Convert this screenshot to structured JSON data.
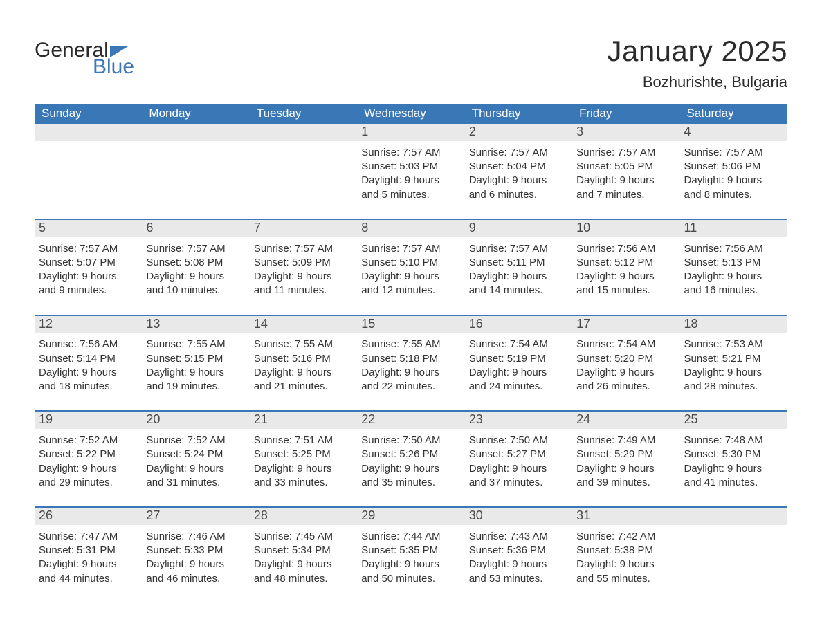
{
  "brand": {
    "word1": "General",
    "word2": "Blue"
  },
  "title": "January 2025",
  "subtitle": "Bozhurishte, Bulgaria",
  "colors": {
    "accent": "#3a77b7",
    "header_text": "#ffffff",
    "daynum_bg": "#e9e9e9",
    "text": "#333333",
    "page_bg": "#ffffff"
  },
  "day_labels": [
    "Sunday",
    "Monday",
    "Tuesday",
    "Wednesday",
    "Thursday",
    "Friday",
    "Saturday"
  ],
  "weeks": [
    [
      null,
      null,
      null,
      {
        "n": "1",
        "sunrise": "7:57 AM",
        "sunset": "5:03 PM",
        "daylight": "9 hours and 5 minutes."
      },
      {
        "n": "2",
        "sunrise": "7:57 AM",
        "sunset": "5:04 PM",
        "daylight": "9 hours and 6 minutes."
      },
      {
        "n": "3",
        "sunrise": "7:57 AM",
        "sunset": "5:05 PM",
        "daylight": "9 hours and 7 minutes."
      },
      {
        "n": "4",
        "sunrise": "7:57 AM",
        "sunset": "5:06 PM",
        "daylight": "9 hours and 8 minutes."
      }
    ],
    [
      {
        "n": "5",
        "sunrise": "7:57 AM",
        "sunset": "5:07 PM",
        "daylight": "9 hours and 9 minutes."
      },
      {
        "n": "6",
        "sunrise": "7:57 AM",
        "sunset": "5:08 PM",
        "daylight": "9 hours and 10 minutes."
      },
      {
        "n": "7",
        "sunrise": "7:57 AM",
        "sunset": "5:09 PM",
        "daylight": "9 hours and 11 minutes."
      },
      {
        "n": "8",
        "sunrise": "7:57 AM",
        "sunset": "5:10 PM",
        "daylight": "9 hours and 12 minutes."
      },
      {
        "n": "9",
        "sunrise": "7:57 AM",
        "sunset": "5:11 PM",
        "daylight": "9 hours and 14 minutes."
      },
      {
        "n": "10",
        "sunrise": "7:56 AM",
        "sunset": "5:12 PM",
        "daylight": "9 hours and 15 minutes."
      },
      {
        "n": "11",
        "sunrise": "7:56 AM",
        "sunset": "5:13 PM",
        "daylight": "9 hours and 16 minutes."
      }
    ],
    [
      {
        "n": "12",
        "sunrise": "7:56 AM",
        "sunset": "5:14 PM",
        "daylight": "9 hours and 18 minutes."
      },
      {
        "n": "13",
        "sunrise": "7:55 AM",
        "sunset": "5:15 PM",
        "daylight": "9 hours and 19 minutes."
      },
      {
        "n": "14",
        "sunrise": "7:55 AM",
        "sunset": "5:16 PM",
        "daylight": "9 hours and 21 minutes."
      },
      {
        "n": "15",
        "sunrise": "7:55 AM",
        "sunset": "5:18 PM",
        "daylight": "9 hours and 22 minutes."
      },
      {
        "n": "16",
        "sunrise": "7:54 AM",
        "sunset": "5:19 PM",
        "daylight": "9 hours and 24 minutes."
      },
      {
        "n": "17",
        "sunrise": "7:54 AM",
        "sunset": "5:20 PM",
        "daylight": "9 hours and 26 minutes."
      },
      {
        "n": "18",
        "sunrise": "7:53 AM",
        "sunset": "5:21 PM",
        "daylight": "9 hours and 28 minutes."
      }
    ],
    [
      {
        "n": "19",
        "sunrise": "7:52 AM",
        "sunset": "5:22 PM",
        "daylight": "9 hours and 29 minutes."
      },
      {
        "n": "20",
        "sunrise": "7:52 AM",
        "sunset": "5:24 PM",
        "daylight": "9 hours and 31 minutes."
      },
      {
        "n": "21",
        "sunrise": "7:51 AM",
        "sunset": "5:25 PM",
        "daylight": "9 hours and 33 minutes."
      },
      {
        "n": "22",
        "sunrise": "7:50 AM",
        "sunset": "5:26 PM",
        "daylight": "9 hours and 35 minutes."
      },
      {
        "n": "23",
        "sunrise": "7:50 AM",
        "sunset": "5:27 PM",
        "daylight": "9 hours and 37 minutes."
      },
      {
        "n": "24",
        "sunrise": "7:49 AM",
        "sunset": "5:29 PM",
        "daylight": "9 hours and 39 minutes."
      },
      {
        "n": "25",
        "sunrise": "7:48 AM",
        "sunset": "5:30 PM",
        "daylight": "9 hours and 41 minutes."
      }
    ],
    [
      {
        "n": "26",
        "sunrise": "7:47 AM",
        "sunset": "5:31 PM",
        "daylight": "9 hours and 44 minutes."
      },
      {
        "n": "27",
        "sunrise": "7:46 AM",
        "sunset": "5:33 PM",
        "daylight": "9 hours and 46 minutes."
      },
      {
        "n": "28",
        "sunrise": "7:45 AM",
        "sunset": "5:34 PM",
        "daylight": "9 hours and 48 minutes."
      },
      {
        "n": "29",
        "sunrise": "7:44 AM",
        "sunset": "5:35 PM",
        "daylight": "9 hours and 50 minutes."
      },
      {
        "n": "30",
        "sunrise": "7:43 AM",
        "sunset": "5:36 PM",
        "daylight": "9 hours and 53 minutes."
      },
      {
        "n": "31",
        "sunrise": "7:42 AM",
        "sunset": "5:38 PM",
        "daylight": "9 hours and 55 minutes."
      },
      null
    ]
  ],
  "labels": {
    "sunrise_prefix": "Sunrise: ",
    "sunset_prefix": "Sunset: ",
    "daylight_prefix": "Daylight: "
  }
}
